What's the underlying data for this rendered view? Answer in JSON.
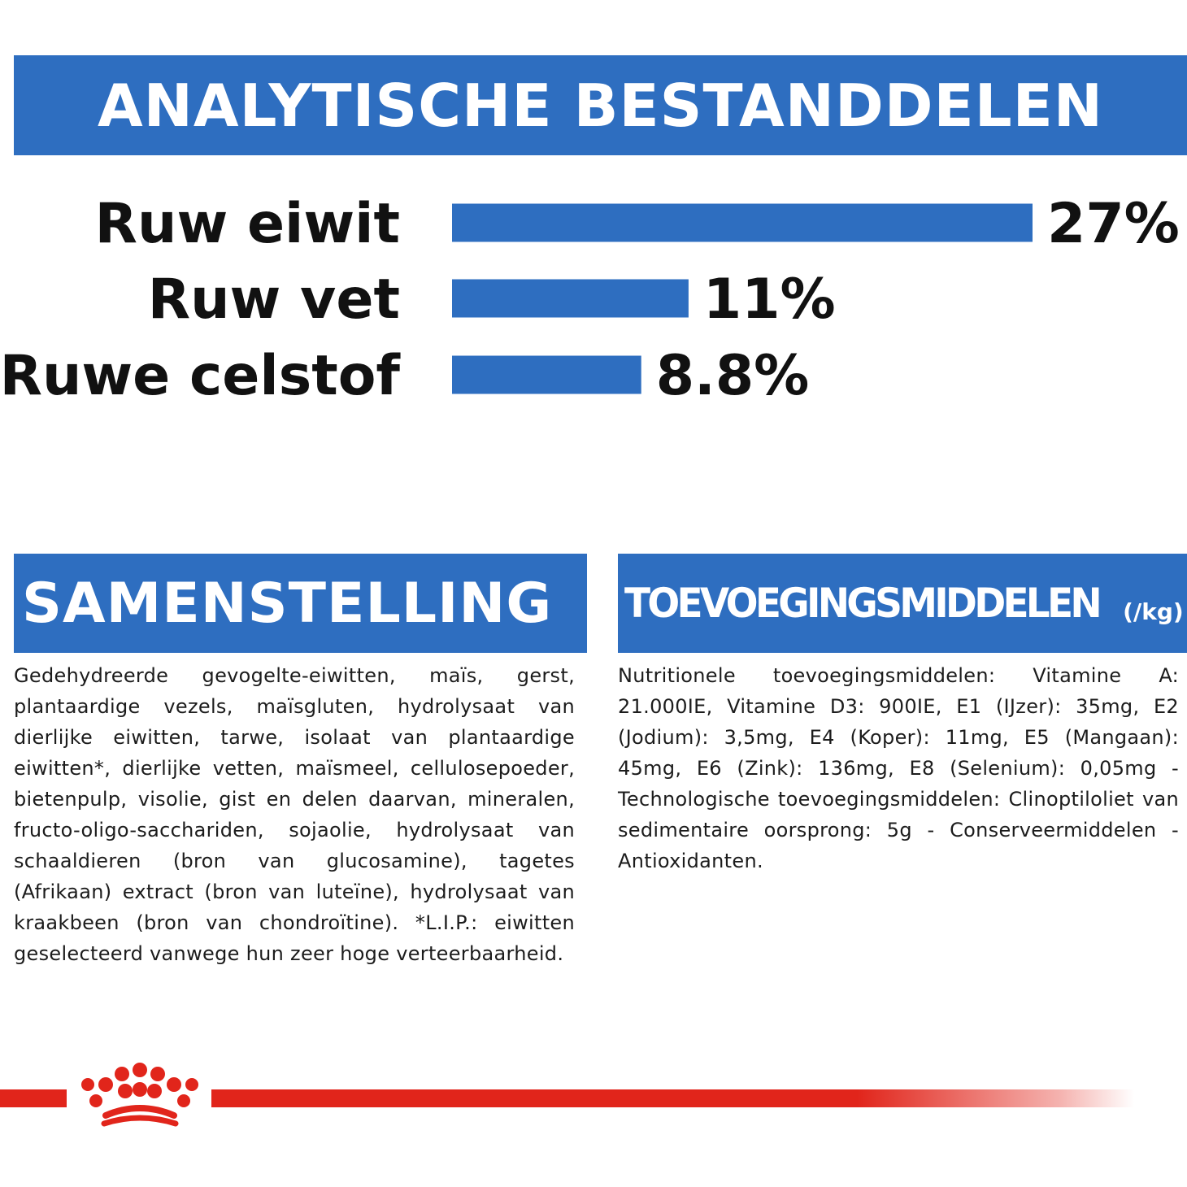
{
  "header": {
    "title": "ANALYTISCHE BESTANDDELEN"
  },
  "chart_data": {
    "type": "bar",
    "orientation": "horizontal",
    "categories": [
      "Ruw eiwit",
      "Ruw vet",
      "Ruwe celstof"
    ],
    "values": [
      27,
      11,
      8.8
    ],
    "value_labels": [
      "27%",
      "11%",
      "8.8%"
    ],
    "unit": "%",
    "bar_color": "#2e6ec0"
  },
  "composition": {
    "title": "SAMENSTELLING",
    "text": "Gedehydreerde gevogelte-eiwitten, maïs, gerst, plantaardige vezels, maïsgluten, hydrolysaat van dierlijke eiwitten, tarwe, isolaat van plantaardige eiwitten*, dierlijke vetten, maïsmeel, cellulosepoeder, bietenpulp, visolie, gist en delen daarvan, mineralen, fructo-oligo-sacchariden, sojaolie, hydrolysaat van schaaldieren (bron van glucosamine), tagetes (Afrikaan) extract (bron van luteïne), hydrolysaat van kraakbeen (bron van chondroïtine). *L.I.P.: eiwitten geselecteerd vanwege hun zeer hoge verteerbaarheid."
  },
  "additives": {
    "title": "TOEVOEGINGSMIDDELEN",
    "title_suffix": "(/kg)",
    "text": "Nutritionele toevoegingsmiddelen: Vitamine A: 21.000IE, Vitamine D3: 900IE, E1 (IJzer): 35mg, E2 (Jodium): 3,5mg, E4 (Koper): 11mg, E5 (Mangaan): 45mg, E6 (Zink): 136mg, E8 (Selenium): 0,05mg - Technologische toevoegingsmiddelen: Clinoptiloliet van sedimentaire oorsprong: 5g - Conserveermiddelen - Antioxidanten."
  },
  "footer": {
    "logo_icon": "crown-icon",
    "brand_color": "#e1251b"
  }
}
